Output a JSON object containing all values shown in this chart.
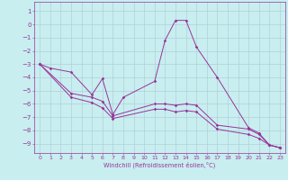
{
  "xlabel": "Windchill (Refroidissement éolien,°C)",
  "bg_color": "#c8eef0",
  "line_color": "#993399",
  "grid_color": "#b0d0d8",
  "xlim": [
    -0.5,
    23.5
  ],
  "ylim": [
    -9.7,
    1.7
  ],
  "yticks": [
    1,
    0,
    -1,
    -2,
    -3,
    -4,
    -5,
    -6,
    -7,
    -8,
    -9
  ],
  "xticks": [
    0,
    1,
    2,
    3,
    4,
    5,
    6,
    7,
    8,
    9,
    10,
    11,
    12,
    13,
    14,
    15,
    16,
    17,
    18,
    19,
    20,
    21,
    22,
    23
  ],
  "series1_x": [
    0,
    1,
    3,
    5,
    6,
    7,
    8,
    11,
    12,
    13,
    14,
    15,
    17,
    20,
    21,
    22,
    23
  ],
  "series1_y": [
    -3.0,
    -3.3,
    -3.6,
    -5.3,
    -4.1,
    -6.8,
    -5.5,
    -4.3,
    -1.2,
    0.3,
    0.3,
    -1.7,
    -4.0,
    -7.8,
    -8.2,
    -9.1,
    -9.3
  ],
  "series2_x": [
    0,
    3,
    5,
    6,
    7,
    11,
    12,
    13,
    14,
    15,
    17,
    20,
    21,
    22,
    23
  ],
  "series2_y": [
    -3.0,
    -5.2,
    -5.5,
    -5.8,
    -6.9,
    -6.0,
    -6.0,
    -6.1,
    -6.0,
    -6.1,
    -7.6,
    -7.9,
    -8.3,
    -9.1,
    -9.3
  ],
  "series3_x": [
    0,
    3,
    5,
    6,
    7,
    11,
    12,
    13,
    14,
    15,
    17,
    20,
    21,
    22,
    23
  ],
  "series3_y": [
    -3.0,
    -5.5,
    -5.9,
    -6.3,
    -7.1,
    -6.4,
    -6.4,
    -6.6,
    -6.5,
    -6.6,
    -7.9,
    -8.3,
    -8.6,
    -9.1,
    -9.3
  ]
}
